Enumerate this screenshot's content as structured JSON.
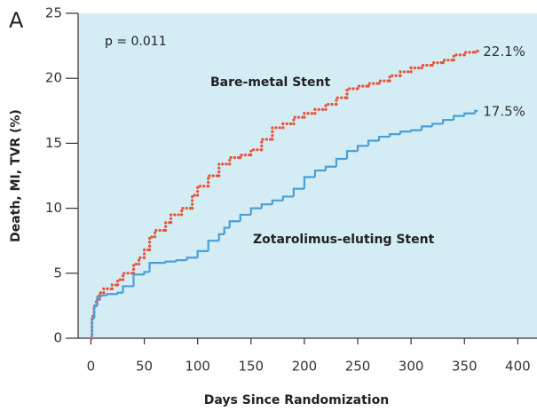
{
  "chart_data": {
    "type": "step",
    "panel_label": "A",
    "xlabel": "Days Since Randomization",
    "ylabel": "Death, MI, TVR (%)",
    "annotation": "p = 0.011",
    "xlim": [
      -12,
      418
    ],
    "ylim": [
      0,
      25
    ],
    "xticks": [
      0,
      50,
      100,
      150,
      200,
      250,
      300,
      350,
      400
    ],
    "yticks": [
      0,
      5,
      10,
      15,
      20,
      25
    ],
    "background": "#d4ecf3",
    "series": [
      {
        "name": "Bare-metal Stent",
        "color": "#e8533a",
        "dotted": true,
        "end_label": "22.1%",
        "x": [
          0,
          1,
          3,
          5,
          8,
          12,
          20,
          25,
          30,
          40,
          45,
          50,
          55,
          60,
          70,
          75,
          85,
          95,
          100,
          110,
          120,
          130,
          140,
          150,
          160,
          170,
          180,
          190,
          200,
          210,
          220,
          230,
          240,
          250,
          260,
          270,
          280,
          290,
          300,
          310,
          320,
          330,
          340,
          350,
          360
        ],
        "values": [
          0,
          1.7,
          2.5,
          3.0,
          3.5,
          3.8,
          4.1,
          4.5,
          5.0,
          5.7,
          6.2,
          6.8,
          7.8,
          8.3,
          8.9,
          9.5,
          10.0,
          11.0,
          11.7,
          12.5,
          13.4,
          13.9,
          14.1,
          14.5,
          15.3,
          16.2,
          16.5,
          17.0,
          17.3,
          17.6,
          18.0,
          18.5,
          19.2,
          19.4,
          19.6,
          19.8,
          20.2,
          20.5,
          20.8,
          21.0,
          21.2,
          21.4,
          21.8,
          22.0,
          22.1
        ]
      },
      {
        "name": "Zotarolimus-eluting Stent",
        "color": "#4a9fd8",
        "dotted": false,
        "end_label": "17.5%",
        "x": [
          0,
          1,
          3,
          6,
          10,
          15,
          25,
          30,
          40,
          50,
          55,
          70,
          80,
          90,
          100,
          110,
          120,
          125,
          130,
          140,
          150,
          160,
          170,
          180,
          190,
          200,
          210,
          220,
          230,
          240,
          250,
          260,
          270,
          280,
          290,
          300,
          310,
          320,
          330,
          340,
          350,
          360
        ],
        "values": [
          0,
          1.5,
          2.5,
          3.2,
          3.3,
          3.4,
          3.5,
          4.0,
          4.9,
          5.1,
          5.8,
          5.9,
          6.0,
          6.2,
          6.7,
          7.5,
          8.0,
          8.5,
          9.0,
          9.5,
          10.0,
          10.3,
          10.6,
          10.9,
          11.5,
          12.4,
          12.9,
          13.2,
          13.8,
          14.4,
          14.8,
          15.2,
          15.5,
          15.7,
          15.9,
          16.0,
          16.3,
          16.5,
          16.8,
          17.1,
          17.3,
          17.5
        ]
      }
    ]
  }
}
